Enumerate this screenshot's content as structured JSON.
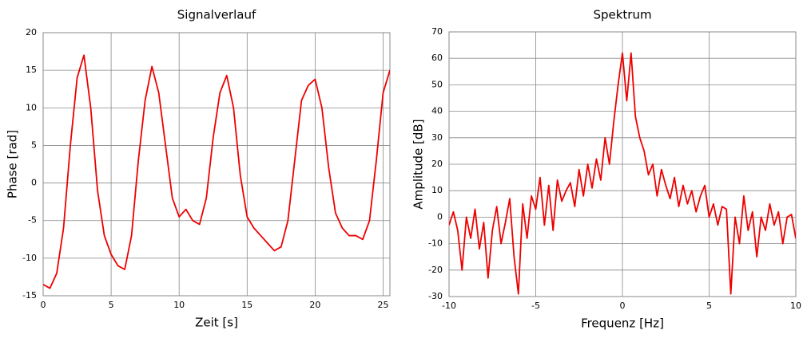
{
  "chart_data": [
    {
      "type": "line",
      "title": "Signalverlauf",
      "x_label": "Zeit [s]",
      "y_label": "Phase [rad]",
      "xlim": [
        0,
        25.5
      ],
      "xticks": [
        0,
        5,
        10,
        15,
        20,
        25
      ],
      "ylim": [
        -15,
        20
      ],
      "yticks": [
        -15,
        -10,
        -5,
        0,
        5,
        10,
        15,
        20
      ],
      "grid": true,
      "x": [
        0,
        0.5,
        1,
        1.5,
        2,
        2.5,
        3,
        3.5,
        4,
        4.5,
        5,
        5.5,
        6,
        6.5,
        7,
        7.5,
        8,
        8.5,
        9,
        9.5,
        10,
        10.5,
        11,
        11.5,
        12,
        12.5,
        13,
        13.5,
        14,
        14.5,
        15,
        15.5,
        16,
        16.5,
        17,
        17.5,
        18,
        18.5,
        19,
        19.5,
        20,
        20.5,
        21,
        21.5,
        22,
        22.5,
        23,
        23.5,
        24,
        24.5,
        25,
        25.5
      ],
      "series": [
        {
          "color": "#ee0000",
          "values": [
            -13.5,
            -14,
            -12,
            -6,
            5,
            14,
            17,
            10,
            -1,
            -7,
            -9.5,
            -11,
            -11.5,
            -7,
            3,
            11,
            15.5,
            12,
            5,
            -2,
            -4.5,
            -3.5,
            -5,
            -5.5,
            -2,
            6,
            12,
            14.3,
            10,
            1,
            -4.5,
            -6,
            -7,
            -8,
            -9,
            -8.5,
            -5,
            3,
            11,
            13,
            13.8,
            10,
            2,
            -4,
            -6,
            -7,
            -7,
            -7.5,
            -5,
            3,
            12,
            15
          ]
        }
      ]
    },
    {
      "type": "line",
      "title": "Spektrum",
      "x_label": "Frequenz [Hz]",
      "y_label": "Amplitude [dB]",
      "xlim": [
        -10,
        10
      ],
      "xticks": [
        -10,
        -5,
        0,
        5,
        10
      ],
      "ylim": [
        -30,
        70
      ],
      "yticks": [
        -30,
        -20,
        -10,
        0,
        10,
        20,
        30,
        40,
        50,
        60,
        70
      ],
      "grid": true,
      "x": [
        -10,
        -9.75,
        -9.5,
        -9.25,
        -9,
        -8.75,
        -8.5,
        -8.25,
        -8,
        -7.75,
        -7.5,
        -7.25,
        -7,
        -6.75,
        -6.5,
        -6.25,
        -6,
        -5.75,
        -5.5,
        -5.25,
        -5,
        -4.75,
        -4.5,
        -4.25,
        -4,
        -3.75,
        -3.5,
        -3.25,
        -3,
        -2.75,
        -2.5,
        -2.25,
        -2,
        -1.75,
        -1.5,
        -1.25,
        -1,
        -0.75,
        -0.5,
        -0.25,
        0,
        0.25,
        0.5,
        0.75,
        1,
        1.25,
        1.5,
        1.75,
        2,
        2.25,
        2.5,
        2.75,
        3,
        3.25,
        3.5,
        3.75,
        4,
        4.25,
        4.5,
        4.75,
        5,
        5.25,
        5.5,
        5.75,
        6,
        6.25,
        6.5,
        6.75,
        7,
        7.25,
        7.5,
        7.75,
        8,
        8.25,
        8.5,
        8.75,
        9,
        9.25,
        9.5,
        9.75,
        10
      ],
      "series": [
        {
          "color": "#ee0000",
          "values": [
            -3,
            2,
            -5,
            -20,
            0,
            -8,
            3,
            -12,
            -2,
            -23,
            -5,
            4,
            -10,
            -2,
            7,
            -15,
            -29,
            5,
            -8,
            8,
            3,
            15,
            -3,
            12,
            -5,
            14,
            6,
            10,
            13,
            4,
            18,
            8,
            20,
            11,
            22,
            14,
            30,
            20,
            36,
            50,
            62,
            44,
            62,
            38,
            30,
            25,
            16,
            20,
            8,
            18,
            12,
            7,
            15,
            4,
            12,
            5,
            10,
            2,
            8,
            12,
            0,
            5,
            -3,
            4,
            3,
            -29,
            0,
            -10,
            8,
            -5,
            2,
            -15,
            0,
            -5,
            5,
            -3,
            2,
            -10,
            0,
            1,
            -8
          ]
        }
      ]
    }
  ]
}
